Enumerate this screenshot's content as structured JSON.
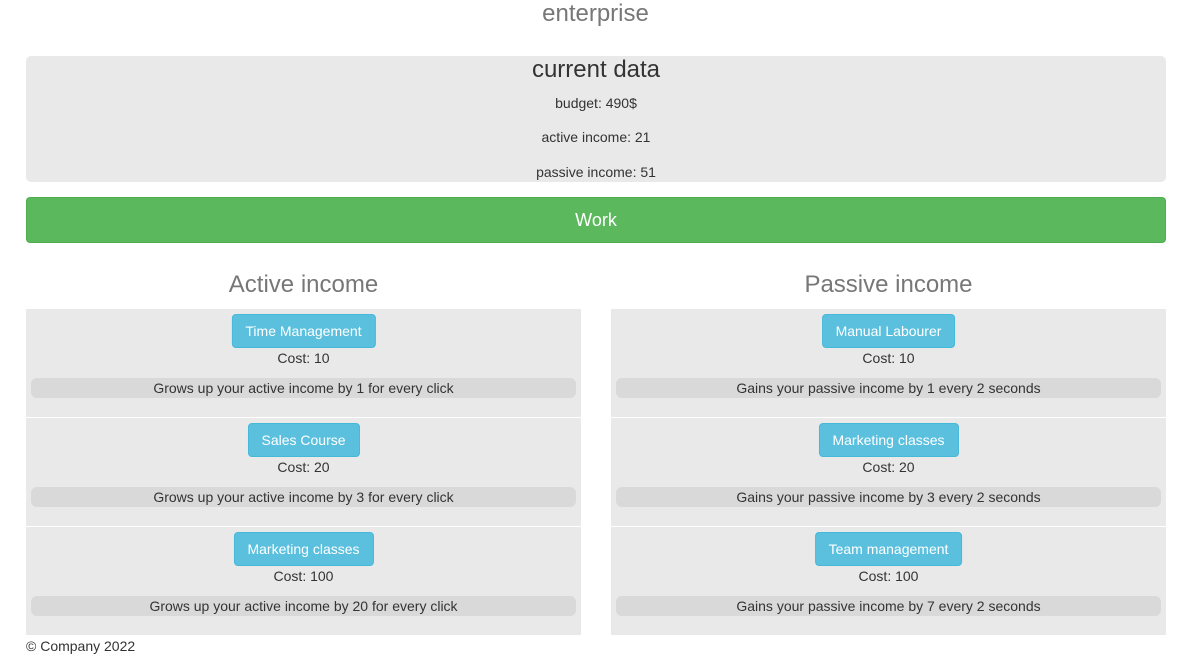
{
  "app": {
    "title": "enterprise"
  },
  "current_data": {
    "heading": "current data",
    "budget": "budget: 490$",
    "active_income": "active income: 21",
    "passive_income": "passive income: 51"
  },
  "work_button": {
    "label": "Work"
  },
  "active": {
    "title": "Active income",
    "items": [
      {
        "label": "Time Management",
        "cost": "Cost: 10",
        "description": "Grows up your active income by 1 for every click"
      },
      {
        "label": "Sales Course",
        "cost": "Cost: 20",
        "description": "Grows up your active income by 3 for every click"
      },
      {
        "label": "Marketing classes",
        "cost": "Cost: 100",
        "description": "Grows up your active income by 20 for every click"
      }
    ]
  },
  "passive": {
    "title": "Passive income",
    "items": [
      {
        "label": "Manual Labourer",
        "cost": "Cost: 10",
        "description": "Gains your passive income by 1 every 2 seconds"
      },
      {
        "label": "Marketing classes",
        "cost": "Cost: 20",
        "description": "Gains your passive income by 3 every 2 seconds"
      },
      {
        "label": "Team management",
        "cost": "Cost: 100",
        "description": "Gains your passive income by 7 every 2 seconds"
      }
    ]
  },
  "footer": {
    "text": "© Company 2022"
  },
  "colors": {
    "work_button": "#5cb85c",
    "upgrade_button": "#5bc0de",
    "panel_background": "#e9e9e9"
  }
}
